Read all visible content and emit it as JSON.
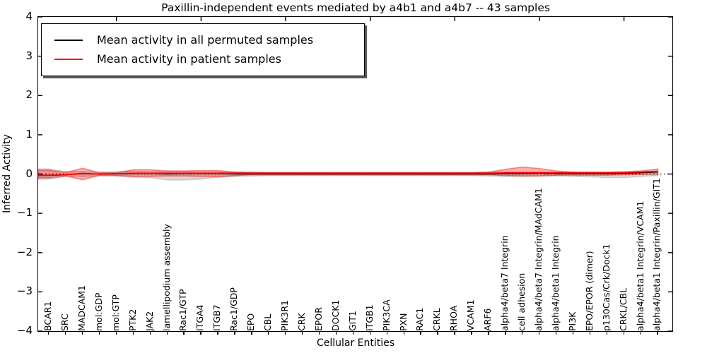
{
  "title": "Paxillin-independent events mediated by a4b1 and a4b7 -- 43 samples",
  "axes": {
    "ylabel": "Inferred Activity",
    "xlabel": "Cellular Entities",
    "yticks": [
      4,
      3,
      2,
      1,
      0,
      -1,
      -2,
      -3,
      -4
    ],
    "ylim": [
      -4,
      4
    ]
  },
  "legend": {
    "items": [
      {
        "label": "Mean activity in all permuted samples",
        "color": "#000000"
      },
      {
        "label": "Mean activity in patient samples",
        "color": "#ff0000"
      }
    ]
  },
  "colors": {
    "permuted_line": "#000000",
    "patient_line": "#ff0000",
    "permuted_band": "#aaaaaa",
    "patient_band": "#ff0000",
    "zero_line": "#000000",
    "frame": "#000000"
  },
  "chart_data": {
    "type": "line",
    "title": "Paxillin-independent events mediated by a4b1 and a4b7 -- 43 samples",
    "xlabel": "Cellular Entities",
    "ylabel": "Inferred Activity",
    "ylim": [
      -4,
      4
    ],
    "yticks": [
      4,
      3,
      2,
      1,
      0,
      -1,
      -2,
      -3,
      -4
    ],
    "grid": false,
    "legend_position": "upper left",
    "zero_reference_line": 0,
    "categories": [
      "BCAR1",
      "SRC",
      "MADCAM1",
      "mol:GDP",
      "mol:GTP",
      "PTK2",
      "JAK2",
      "lamellipodium assembly",
      "Rac1/GTP",
      "ITGA4",
      "ITGB7",
      "Rac1/GDP",
      "EPO",
      "CBL",
      "PIK3R1",
      "CRK",
      "EPOR",
      "DOCK1",
      "GIT1",
      "ITGB1",
      "PIK3CA",
      "PXN",
      "RAC1",
      "CRKL",
      "RHOA",
      "VCAM1",
      "ARF6",
      "alpha4/beta7 Integrin",
      "cell adhesion",
      "alpha4/beta7 Integrin/MAdCAM1",
      "alpha4/beta1 Integrin",
      "PI3K",
      "EPO/EPOR (dimer)",
      "p130Cas/Crk/Dock1",
      "CRKL/CBL",
      "alpha4/beta1 Integrin/VCAM1",
      "alpha4/beta1 Integrin/Paxillin/GIT1"
    ],
    "series": [
      {
        "name": "Mean activity in all permuted samples",
        "color": "#000000",
        "values": [
          -0.04,
          -0.02,
          0.02,
          0.0,
          0.0,
          0.01,
          0.02,
          0.0,
          0.01,
          0.01,
          0.01,
          0.0,
          0.0,
          0.0,
          0.0,
          0.0,
          0.0,
          0.0,
          0.0,
          0.0,
          0.0,
          0.0,
          0.0,
          0.0,
          0.0,
          0.0,
          0.0,
          0.01,
          0.01,
          0.02,
          0.01,
          0.01,
          0.01,
          0.01,
          0.02,
          0.03,
          0.05
        ]
      },
      {
        "name": "Mean activity in patient samples",
        "color": "#ff0000",
        "values": [
          -0.03,
          -0.02,
          0.01,
          0.0,
          0.01,
          0.02,
          0.02,
          0.02,
          0.02,
          0.02,
          0.02,
          0.02,
          0.02,
          0.02,
          0.02,
          0.02,
          0.02,
          0.02,
          0.02,
          0.02,
          0.02,
          0.02,
          0.02,
          0.02,
          0.02,
          0.02,
          0.02,
          0.03,
          0.03,
          0.03,
          0.03,
          0.03,
          0.03,
          0.03,
          0.04,
          0.05,
          0.07
        ]
      }
    ],
    "bands": [
      {
        "name": "permuted samples range",
        "color": "#aaaaaa",
        "opacity": 0.45,
        "upper": [
          0.13,
          0.06,
          0.06,
          0.05,
          0.05,
          0.07,
          0.06,
          0.07,
          0.07,
          0.06,
          0.06,
          0.05,
          0.05,
          0.04,
          0.04,
          0.04,
          0.04,
          0.04,
          0.04,
          0.04,
          0.04,
          0.04,
          0.04,
          0.04,
          0.04,
          0.04,
          0.05,
          0.05,
          0.05,
          0.05,
          0.05,
          0.05,
          0.04,
          0.04,
          0.04,
          0.04,
          0.05
        ],
        "lower": [
          -0.13,
          -0.06,
          -0.06,
          -0.05,
          -0.05,
          -0.08,
          -0.09,
          -0.15,
          -0.15,
          -0.13,
          -0.08,
          -0.06,
          -0.05,
          -0.04,
          -0.04,
          -0.04,
          -0.04,
          -0.04,
          -0.04,
          -0.04,
          -0.04,
          -0.04,
          -0.04,
          -0.04,
          -0.04,
          -0.04,
          -0.05,
          -0.06,
          -0.06,
          -0.05,
          -0.05,
          -0.06,
          -0.07,
          -0.09,
          -0.09,
          -0.06,
          -0.04
        ]
      },
      {
        "name": "patient samples range",
        "color": "#ff0000",
        "opacity": 0.32,
        "upper": [
          0.1,
          0.04,
          0.15,
          0.03,
          0.04,
          0.11,
          0.11,
          0.08,
          0.08,
          0.09,
          0.09,
          0.05,
          0.04,
          0.04,
          0.04,
          0.04,
          0.04,
          0.04,
          0.04,
          0.04,
          0.04,
          0.04,
          0.04,
          0.04,
          0.04,
          0.04,
          0.05,
          0.12,
          0.18,
          0.14,
          0.08,
          0.05,
          0.05,
          0.05,
          0.06,
          0.08,
          0.13
        ],
        "lower": [
          -0.1,
          -0.05,
          -0.15,
          -0.03,
          -0.04,
          -0.06,
          -0.06,
          -0.05,
          -0.05,
          -0.06,
          -0.07,
          -0.04,
          -0.02,
          -0.02,
          -0.02,
          -0.02,
          -0.02,
          -0.02,
          -0.02,
          -0.02,
          -0.02,
          -0.02,
          -0.02,
          -0.02,
          -0.02,
          -0.02,
          -0.02,
          -0.04,
          -0.05,
          -0.05,
          -0.03,
          -0.03,
          -0.03,
          -0.03,
          -0.02,
          -0.01,
          0.0
        ]
      }
    ],
    "top_axis_tick_indices": [
      4,
      9,
      14,
      19,
      24,
      29,
      34
    ]
  }
}
